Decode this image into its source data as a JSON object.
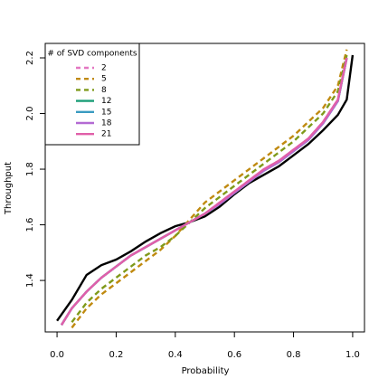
{
  "chart_data": {
    "type": "line",
    "x_label": "Probability",
    "y_label": "Throughput",
    "legend_title": "# of SVD components",
    "legend": "topleft",
    "xlim": [
      -0.04,
      1.04
    ],
    "ylim": [
      1.215,
      2.252
    ],
    "xticks": [
      {
        "value": 0,
        "label": "0.0"
      },
      0.2,
      0.4,
      0.6,
      0.8,
      {
        "value": 1,
        "label": "1.0"
      }
    ],
    "yticks": [
      1.4,
      1.6,
      1.8,
      {
        "value": 2,
        "label": "2.0"
      },
      2.2
    ],
    "series": [
      {
        "color": "#000000",
        "linestyle": "solid",
        "x": [
          0,
          0.05,
          0.1,
          0.15,
          0.2,
          0.25,
          0.3,
          0.35,
          0.4,
          0.45,
          0.5,
          0.55,
          0.6,
          0.65,
          0.7,
          0.75,
          0.8,
          0.85,
          0.9,
          0.95,
          0.98,
          1.0
        ],
        "values": [
          1.255,
          1.33,
          1.42,
          1.455,
          1.475,
          1.505,
          1.54,
          1.57,
          1.595,
          1.61,
          1.63,
          1.665,
          1.71,
          1.75,
          1.78,
          1.81,
          1.85,
          1.89,
          1.94,
          1.995,
          2.05,
          2.21
        ]
      },
      {
        "name": "2",
        "color": "#e377c2",
        "linestyle": "dashed",
        "x": [
          0.015,
          0.05,
          0.1,
          0.15,
          0.2,
          0.25,
          0.3,
          0.35,
          0.4,
          0.45,
          0.5,
          0.55,
          0.6,
          0.65,
          0.7,
          0.75,
          0.8,
          0.85,
          0.9,
          0.95,
          0.98
        ],
        "values": [
          1.24,
          1.3,
          1.36,
          1.41,
          1.45,
          1.49,
          1.52,
          1.55,
          1.58,
          1.61,
          1.64,
          1.68,
          1.72,
          1.76,
          1.8,
          1.83,
          1.87,
          1.91,
          1.97,
          2.05,
          2.2
        ]
      },
      {
        "name": "5",
        "color": "#c08a10",
        "linestyle": "dashed",
        "x": [
          0.05,
          0.1,
          0.15,
          0.2,
          0.25,
          0.3,
          0.35,
          0.4,
          0.45,
          0.5,
          0.55,
          0.6,
          0.65,
          0.7,
          0.75,
          0.8,
          0.85,
          0.9,
          0.95,
          0.98
        ],
        "values": [
          1.23,
          1.3,
          1.35,
          1.39,
          1.43,
          1.47,
          1.51,
          1.56,
          1.62,
          1.68,
          1.72,
          1.76,
          1.8,
          1.84,
          1.88,
          1.92,
          1.97,
          2.02,
          2.1,
          2.23
        ]
      },
      {
        "name": "8",
        "color": "#7f9a1a",
        "linestyle": "dashed",
        "x": [
          0.05,
          0.1,
          0.15,
          0.2,
          0.25,
          0.3,
          0.35,
          0.4,
          0.45,
          0.5,
          0.55,
          0.6,
          0.65,
          0.7,
          0.75,
          0.8,
          0.85,
          0.9,
          0.95,
          0.98
        ],
        "values": [
          1.25,
          1.32,
          1.37,
          1.41,
          1.45,
          1.49,
          1.52,
          1.56,
          1.61,
          1.66,
          1.7,
          1.74,
          1.78,
          1.82,
          1.86,
          1.9,
          1.95,
          2.0,
          2.08,
          2.21
        ]
      },
      {
        "name": "12",
        "color": "#1b9e77",
        "linestyle": "solid",
        "x": [
          0.015,
          0.05,
          0.1,
          0.15,
          0.2,
          0.25,
          0.3,
          0.35,
          0.4,
          0.45,
          0.5,
          0.55,
          0.6,
          0.65,
          0.7,
          0.75,
          0.8,
          0.85,
          0.9,
          0.95,
          0.98
        ],
        "values": [
          1.24,
          1.3,
          1.36,
          1.41,
          1.45,
          1.49,
          1.52,
          1.55,
          1.58,
          1.61,
          1.64,
          1.675,
          1.715,
          1.755,
          1.795,
          1.825,
          1.865,
          1.905,
          1.965,
          2.045,
          2.2
        ]
      },
      {
        "name": "15",
        "color": "#3a9bc1",
        "linestyle": "solid",
        "x": [
          0.015,
          0.05,
          0.1,
          0.15,
          0.2,
          0.25,
          0.3,
          0.35,
          0.4,
          0.45,
          0.5,
          0.55,
          0.6,
          0.65,
          0.7,
          0.75,
          0.8,
          0.85,
          0.9,
          0.95,
          0.98
        ],
        "values": [
          1.24,
          1.3,
          1.36,
          1.41,
          1.45,
          1.49,
          1.52,
          1.55,
          1.58,
          1.61,
          1.64,
          1.675,
          1.715,
          1.755,
          1.795,
          1.825,
          1.865,
          1.905,
          1.965,
          2.045,
          2.2
        ]
      },
      {
        "name": "18",
        "color": "#b36ad3",
        "linestyle": "solid",
        "x": [
          0.015,
          0.05,
          0.1,
          0.15,
          0.2,
          0.25,
          0.3,
          0.35,
          0.4,
          0.45,
          0.5,
          0.55,
          0.6,
          0.65,
          0.7,
          0.75,
          0.8,
          0.85,
          0.9,
          0.95,
          0.98
        ],
        "values": [
          1.24,
          1.3,
          1.36,
          1.41,
          1.45,
          1.49,
          1.52,
          1.55,
          1.58,
          1.61,
          1.64,
          1.675,
          1.715,
          1.755,
          1.795,
          1.825,
          1.865,
          1.905,
          1.965,
          2.045,
          2.2
        ]
      },
      {
        "name": "21",
        "color": "#e05fa9",
        "linestyle": "solid",
        "x": [
          0.015,
          0.05,
          0.1,
          0.15,
          0.2,
          0.25,
          0.3,
          0.35,
          0.4,
          0.45,
          0.5,
          0.55,
          0.6,
          0.65,
          0.7,
          0.75,
          0.8,
          0.85,
          0.9,
          0.95,
          0.98
        ],
        "values": [
          1.24,
          1.3,
          1.36,
          1.41,
          1.45,
          1.49,
          1.52,
          1.55,
          1.58,
          1.61,
          1.64,
          1.68,
          1.72,
          1.76,
          1.8,
          1.83,
          1.87,
          1.91,
          1.97,
          2.05,
          2.2
        ]
      }
    ]
  }
}
